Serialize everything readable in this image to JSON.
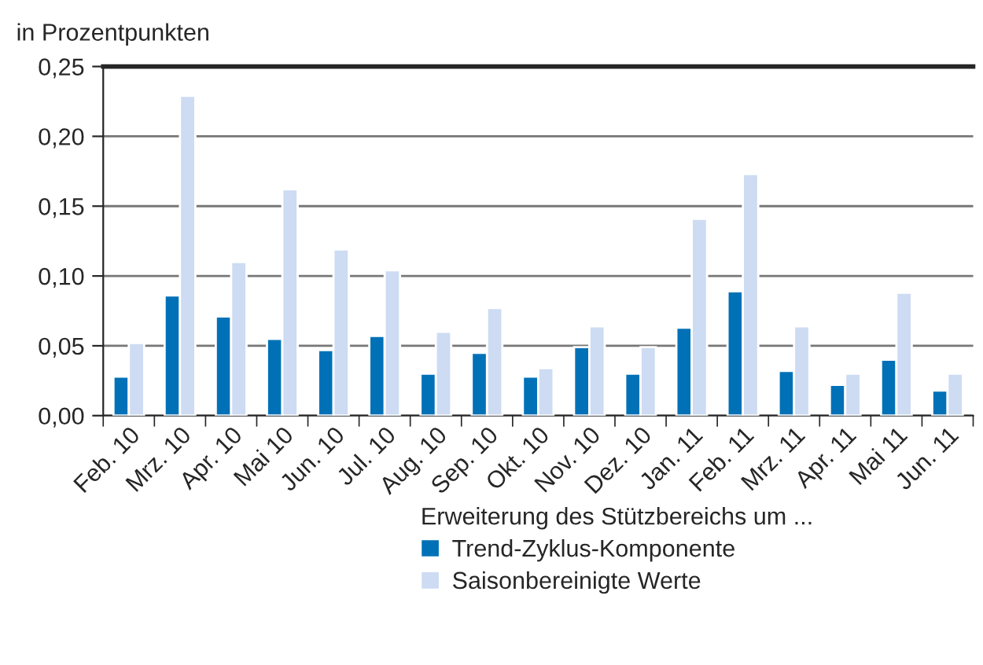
{
  "chart_data": {
    "type": "bar",
    "ylabel": "in Prozentpunkten",
    "legend_title": "Erweiterung des Stützbereichs um ...",
    "categories": [
      "Feb. 10",
      "Mrz. 10",
      "Apr. 10",
      "Mai 10",
      "Jun. 10",
      "Jul. 10",
      "Aug. 10",
      "Sep. 10",
      "Okt. 10",
      "Nov. 10",
      "Dez. 10",
      "Jan. 11",
      "Feb. 11",
      "Mrz. 11",
      "Apr. 11",
      "Mai 11",
      "Jun. 11"
    ],
    "series": [
      {
        "name": "Trend-Zyklus-Komponente",
        "color": "#0071b7",
        "values": [
          0.028,
          0.086,
          0.071,
          0.055,
          0.047,
          0.057,
          0.03,
          0.045,
          0.028,
          0.049,
          0.03,
          0.063,
          0.089,
          0.032,
          0.022,
          0.04,
          0.018
        ]
      },
      {
        "name": "Saisonbereinigte Werte",
        "color": "#cddbf3",
        "values": [
          0.052,
          0.229,
          0.11,
          0.162,
          0.119,
          0.104,
          0.06,
          0.077,
          0.034,
          0.064,
          0.049,
          0.141,
          0.173,
          0.064,
          0.03,
          0.088,
          0.03
        ]
      }
    ],
    "ylim": [
      0,
      0.25
    ],
    "yticks": [
      {
        "value": 0,
        "label": "0,00"
      },
      {
        "value": 0.05,
        "label": "0,05"
      },
      {
        "value": 0.1,
        "label": "0,10"
      },
      {
        "value": 0.15,
        "label": "0,15"
      },
      {
        "value": 0.2,
        "label": "0,20"
      },
      {
        "value": 0.25,
        "label": "0,25"
      }
    ],
    "grid": "y",
    "legend": "bottom"
  }
}
